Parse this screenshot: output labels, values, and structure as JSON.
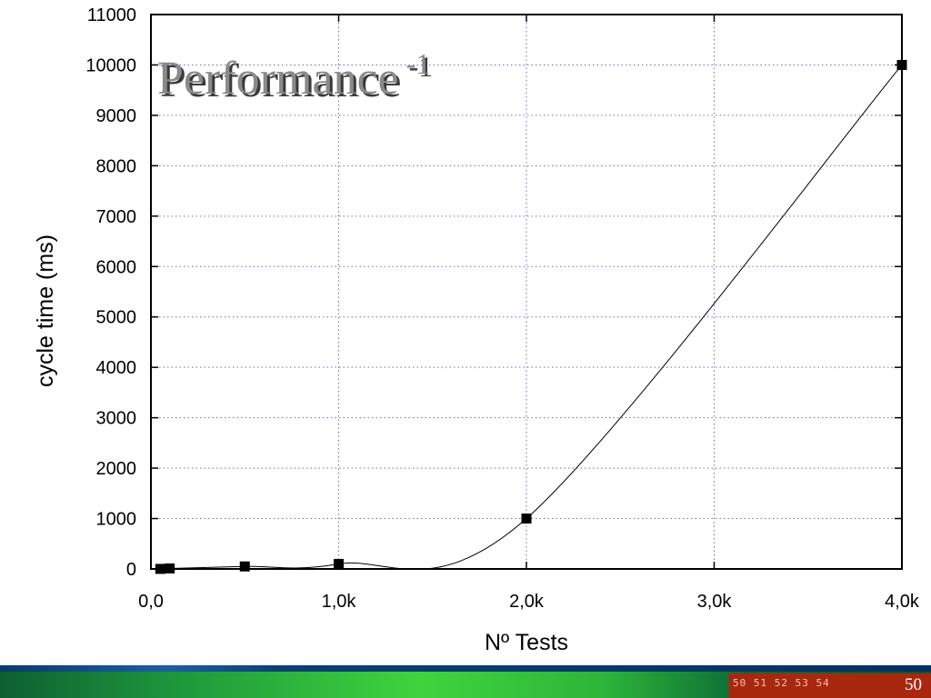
{
  "slide": {
    "title": "Performance",
    "title_superscript": "-1",
    "page_number": "50",
    "page_list": "50 51 52 53 54"
  },
  "chart_data": {
    "type": "line",
    "title": "",
    "xlabel": "Nº Tests",
    "ylabel": "cycle time (ms)",
    "xlim": [
      0,
      4000
    ],
    "ylim": [
      0,
      11000
    ],
    "x_ticks": [
      0,
      1000,
      2000,
      3000,
      4000
    ],
    "x_tick_labels": [
      "0,0",
      "1,0k",
      "2,0k",
      "3,0k",
      "4,0k"
    ],
    "y_ticks": [
      0,
      1000,
      2000,
      3000,
      4000,
      5000,
      6000,
      7000,
      8000,
      9000,
      10000,
      11000
    ],
    "y_tick_labels": [
      "0",
      "1000",
      "2000",
      "3000",
      "4000",
      "5000",
      "6000",
      "7000",
      "8000",
      "9000",
      "10000",
      "11000"
    ],
    "grid": true,
    "series": [
      {
        "x": [
          50,
          100,
          500,
          1000,
          2000,
          4000
        ],
        "y": [
          1,
          10,
          50,
          100,
          1000,
          10000
        ],
        "marker": "square",
        "color": "#000000"
      }
    ]
  },
  "colors": {
    "footer_green": "#2db43a",
    "footer_blue": "#0c3f74",
    "page_box": "#a8280f"
  }
}
